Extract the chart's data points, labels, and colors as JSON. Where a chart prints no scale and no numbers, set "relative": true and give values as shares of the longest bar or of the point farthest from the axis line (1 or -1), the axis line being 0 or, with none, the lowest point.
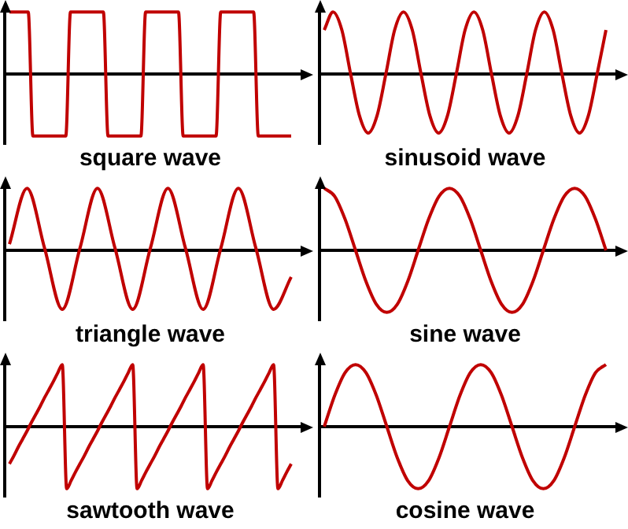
{
  "chart_data": [
    {
      "type": "line",
      "title": "square wave",
      "relative": true,
      "color": "#c00000",
      "categories": [
        null,
        null,
        null,
        null,
        null,
        null,
        null,
        null,
        null,
        null,
        null,
        null,
        null,
        null,
        null,
        null,
        null,
        null,
        null,
        null,
        null,
        null,
        null,
        null,
        null,
        null,
        null,
        null,
        null,
        null,
        null,
        null,
        null,
        null,
        null,
        null,
        null,
        null,
        null,
        null,
        null,
        null,
        null,
        null,
        null,
        null,
        null,
        null,
        null,
        null,
        null,
        null,
        null,
        null,
        null,
        null,
        null,
        null,
        null,
        null,
        null
      ],
      "values": [
        1,
        1,
        1,
        1,
        1,
        -1,
        -1,
        -1,
        -1,
        -1,
        -1,
        -1,
        -1,
        1,
        1,
        1,
        1,
        1,
        1,
        1,
        1,
        -1,
        -1,
        -1,
        -1,
        -1,
        -1,
        -1,
        -1,
        1,
        1,
        1,
        1,
        1,
        1,
        1,
        1,
        -1,
        -1,
        -1,
        -1,
        -1,
        -1,
        -1,
        -1,
        1,
        1,
        1,
        1,
        1,
        1,
        1,
        1,
        -1,
        -1,
        -1,
        -1,
        -1,
        -1,
        -1,
        -1
      ]
    },
    {
      "type": "line",
      "title": "sinusoid wave",
      "relative": true,
      "color": "#c00000",
      "categories": [
        null,
        null,
        null,
        null,
        null,
        null,
        null,
        null,
        null,
        null,
        null,
        null,
        null,
        null,
        null,
        null,
        null,
        null,
        null,
        null,
        null,
        null,
        null,
        null,
        null,
        null,
        null,
        null,
        null,
        null,
        null,
        null,
        null
      ],
      "values": [
        0.71,
        1,
        0.71,
        0,
        -0.67,
        -0.95,
        -0.67,
        0,
        0.71,
        1,
        0.71,
        0,
        -0.67,
        -0.95,
        -0.67,
        0,
        0.71,
        1,
        0.71,
        0,
        -0.67,
        -0.95,
        -0.67,
        0,
        0.71,
        1,
        0.71,
        0,
        -0.67,
        -0.95,
        -0.67,
        0,
        0.71
      ]
    },
    {
      "type": "line",
      "title": "triangle wave",
      "relative": true,
      "color": "#c00000",
      "categories": [
        null,
        null,
        null,
        null,
        null,
        null,
        null,
        null,
        null,
        null,
        null,
        null,
        null,
        null,
        null,
        null,
        null
      ],
      "values": [
        0.1,
        1,
        0.03,
        -0.95,
        0.03,
        1,
        0.03,
        -0.95,
        0.03,
        1,
        0.03,
        -0.95,
        0.03,
        1,
        0.03,
        -0.95,
        -0.43
      ]
    },
    {
      "type": "line",
      "title": "sine wave",
      "relative": true,
      "color": "#c00000",
      "categories": [
        null,
        null,
        null,
        null,
        null,
        null,
        null,
        null,
        null,
        null,
        null,
        null,
        null,
        null,
        null,
        null,
        null,
        null,
        null,
        null,
        null,
        null,
        null,
        null,
        null,
        null,
        null,
        null
      ],
      "values": [
        1,
        0.87,
        0.5,
        0,
        -0.5,
        -0.87,
        -1,
        -0.87,
        -0.5,
        0,
        0.5,
        0.87,
        1,
        0.87,
        0.5,
        0,
        -0.5,
        -0.87,
        -1,
        -0.87,
        -0.5,
        0,
        0.5,
        0.87,
        1,
        0.87,
        0.5,
        0
      ]
    },
    {
      "type": "line",
      "title": "sawtooth wave",
      "relative": true,
      "color": "#c00000",
      "categories": [
        null,
        null,
        null,
        null,
        null,
        null,
        null,
        null,
        null,
        null,
        null,
        null,
        null,
        null,
        null,
        null,
        null,
        null,
        null,
        null,
        null,
        null,
        null,
        null,
        null,
        null,
        null,
        null,
        null,
        null,
        null,
        null,
        null,
        null,
        null,
        null,
        null,
        null,
        null,
        null,
        null,
        null,
        null,
        null,
        null,
        null,
        null,
        null,
        null,
        null,
        null,
        null,
        null,
        null,
        null,
        null,
        null,
        null,
        null,
        null,
        null,
        null,
        null,
        null,
        null
      ],
      "values": [
        -0.6,
        -0.47,
        -0.33,
        -0.2,
        -0.07,
        0.07,
        0.2,
        0.33,
        0.47,
        0.6,
        0.73,
        0.87,
        1,
        -1,
        -0.87,
        -0.73,
        -0.6,
        -0.47,
        -0.33,
        -0.2,
        -0.07,
        0.07,
        0.2,
        0.33,
        0.47,
        0.6,
        0.73,
        0.87,
        1,
        -1,
        -0.87,
        -0.73,
        -0.6,
        -0.47,
        -0.33,
        -0.2,
        -0.07,
        0.07,
        0.2,
        0.33,
        0.47,
        0.6,
        0.73,
        0.87,
        1,
        -1,
        -0.87,
        -0.73,
        -0.6,
        -0.47,
        -0.33,
        -0.2,
        -0.07,
        0.07,
        0.2,
        0.33,
        0.47,
        0.6,
        0.73,
        0.87,
        1,
        -1,
        -0.87,
        -0.73,
        -0.6
      ]
    },
    {
      "type": "line",
      "title": "cosine wave",
      "relative": true,
      "color": "#c00000",
      "categories": [
        null,
        null,
        null,
        null,
        null,
        null,
        null,
        null,
        null,
        null,
        null,
        null,
        null,
        null,
        null,
        null,
        null,
        null,
        null,
        null,
        null,
        null,
        null,
        null,
        null,
        null,
        null,
        null
      ],
      "values": [
        0,
        0.5,
        0.87,
        1,
        0.87,
        0.5,
        0,
        -0.5,
        -0.87,
        -1,
        -0.87,
        -0.5,
        0,
        0.5,
        0.87,
        1,
        0.87,
        0.5,
        0,
        -0.5,
        -0.87,
        -1,
        -0.87,
        -0.5,
        0,
        0.5,
        0.87,
        1
      ]
    }
  ]
}
